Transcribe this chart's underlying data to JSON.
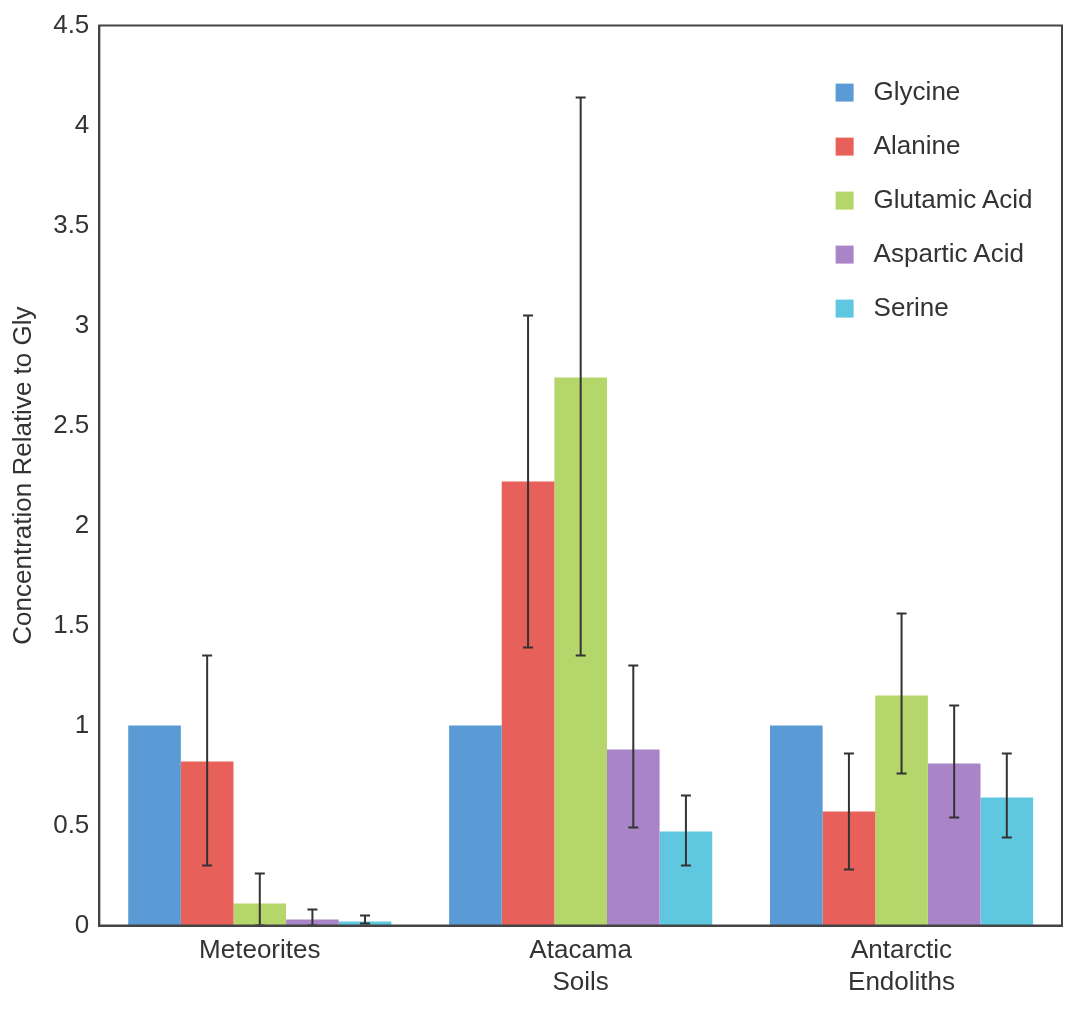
{
  "chart_data": {
    "type": "bar",
    "ylabel": "Concentration Relative to Gly",
    "categories": [
      "Meteorites",
      "Atacama Soils",
      "Antarctic Endoliths"
    ],
    "series": [
      {
        "name": "Glycine",
        "color": "#5b9bd5",
        "values": [
          1.0,
          1.0,
          1.0
        ]
      },
      {
        "name": "Alanine",
        "color": "#e8605a",
        "values": [
          0.82,
          2.22,
          0.57
        ],
        "errors": [
          [
            0.3,
            1.35
          ],
          [
            1.39,
            3.05
          ],
          [
            0.28,
            0.86
          ]
        ]
      },
      {
        "name": "Glutamic Acid",
        "color": "#b5d66a",
        "values": [
          0.11,
          2.74,
          1.15
        ],
        "errors": [
          [
            0,
            0.26
          ],
          [
            1.35,
            4.14
          ],
          [
            0.76,
            1.56
          ]
        ]
      },
      {
        "name": "Aspartic Acid",
        "color": "#a985c8",
        "values": [
          0.03,
          0.88,
          0.81
        ],
        "errors": [
          [
            0,
            0.08
          ],
          [
            0.49,
            1.3
          ],
          [
            0.54,
            1.1
          ]
        ]
      },
      {
        "name": "Serine",
        "color": "#5fc8e0",
        "values": [
          0.02,
          0.47,
          0.64
        ],
        "errors": [
          [
            0.01,
            0.05
          ],
          [
            0.3,
            0.65
          ],
          [
            0.44,
            0.86
          ]
        ]
      }
    ],
    "ylim": [
      0,
      4.5
    ],
    "yticks": [
      0,
      0.5,
      1,
      1.5,
      2,
      2.5,
      3,
      3.5,
      4,
      4.5
    ],
    "grid": false,
    "legend": "top right"
  }
}
